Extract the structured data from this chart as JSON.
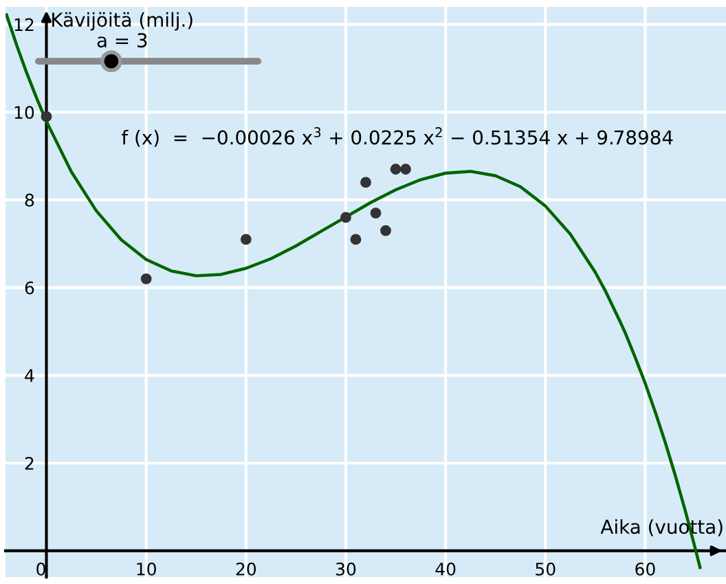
{
  "chart_data": {
    "type": "scatter",
    "xlabel": "Aika (vuotta)",
    "ylabel": "Kävijöitä (milj.)",
    "xlim": [
      -4.1,
      68.1
    ],
    "ylim": [
      -0.6,
      12.4
    ],
    "xticks": [
      0,
      10,
      20,
      30,
      40,
      50,
      60
    ],
    "yticks": [
      2,
      4,
      6,
      8,
      10,
      12
    ],
    "grid": true,
    "marker": "circle",
    "series": [
      {
        "color": "#333333",
        "x": [
          0,
          10,
          20,
          30,
          31,
          32,
          33,
          34,
          35,
          36
        ],
        "values": [
          9.9,
          6.2,
          7.1,
          7.6,
          7.1,
          8.4,
          7.7,
          7.3,
          8.7,
          8.7
        ]
      },
      {
        "type": "line",
        "color": "#006400",
        "marker": "none",
        "x": [
          -4,
          -3,
          -2,
          -1,
          0,
          2.5,
          5,
          7.5,
          10,
          12.5,
          15,
          17.5,
          20,
          22.5,
          25,
          27.5,
          30,
          32.5,
          35,
          37.5,
          40,
          42.5,
          45,
          47.5,
          50,
          52.5,
          55,
          56,
          57.5,
          58,
          59,
          60,
          61,
          62,
          63,
          64,
          65,
          65.5
        ],
        "values": [
          12.22,
          11.54,
          10.91,
          10.33,
          9.79,
          8.64,
          7.75,
          7.09,
          6.64,
          6.38,
          6.27,
          6.3,
          6.44,
          6.66,
          6.95,
          7.28,
          7.61,
          7.94,
          8.23,
          8.46,
          8.61,
          8.65,
          8.55,
          8.3,
          7.86,
          7.22,
          6.35,
          5.93,
          5.22,
          4.97,
          4.41,
          3.82,
          3.17,
          2.48,
          1.73,
          0.93,
          0.07,
          -0.38
        ]
      }
    ],
    "annotations": [
      "f (x)  =  −0.00026 x$^{3}$ + 0.0225 x$^{2}$ − 0.51354 x + 9.78984",
      "a = 3"
    ]
  }
}
